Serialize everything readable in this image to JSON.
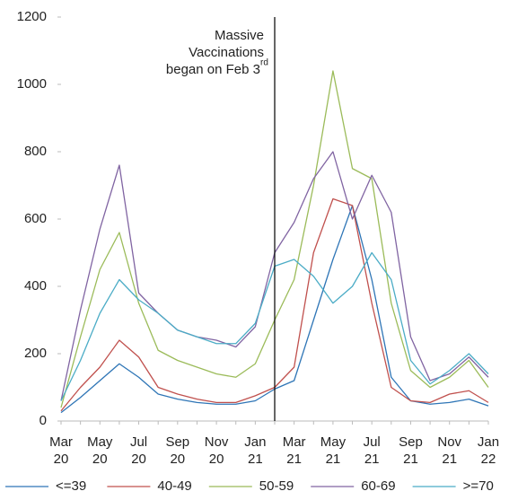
{
  "chart_data": {
    "type": "line",
    "categories": [
      "Mar 20",
      null,
      "May 20",
      null,
      "Jul 20",
      null,
      "Sep 20",
      null,
      "Nov 20",
      null,
      "Jan 21",
      null,
      "Mar 21",
      null,
      "May 21",
      null,
      "Jul 21",
      null,
      "Sep 21",
      null,
      "Nov 21",
      null,
      "Jan 22"
    ],
    "series": [
      {
        "name": "<=39",
        "color": "#2e75b6",
        "values": [
          25,
          70,
          120,
          170,
          130,
          80,
          65,
          55,
          50,
          50,
          60,
          95,
          120,
          300,
          480,
          640,
          420,
          130,
          60,
          50,
          55,
          65,
          45
        ]
      },
      {
        "name": "40-49",
        "color": "#c0504d",
        "values": [
          30,
          100,
          160,
          240,
          190,
          100,
          80,
          65,
          55,
          55,
          75,
          100,
          160,
          500,
          660,
          640,
          350,
          100,
          60,
          55,
          80,
          90,
          55
        ]
      },
      {
        "name": "50-59",
        "color": "#9bbb59",
        "values": [
          40,
          250,
          450,
          560,
          350,
          210,
          180,
          160,
          140,
          130,
          170,
          300,
          420,
          700,
          1040,
          750,
          720,
          350,
          150,
          100,
          130,
          180,
          100
        ]
      },
      {
        "name": "60-69",
        "color": "#8064a2",
        "values": [
          60,
          330,
          570,
          760,
          380,
          320,
          270,
          250,
          240,
          220,
          280,
          500,
          590,
          720,
          800,
          600,
          730,
          620,
          250,
          120,
          140,
          190,
          130
        ]
      },
      {
        "name": ">=70",
        "color": "#4bacc6",
        "values": [
          60,
          180,
          320,
          420,
          360,
          320,
          270,
          250,
          230,
          230,
          290,
          460,
          480,
          430,
          350,
          400,
          500,
          420,
          180,
          110,
          150,
          200,
          140
        ]
      }
    ],
    "ylim": [
      0,
      1200
    ],
    "yticks": [
      0,
      200,
      400,
      600,
      800,
      1000,
      1200
    ],
    "annotation": {
      "lines": [
        "Massive",
        "Vaccinations",
        "began on Feb 3"
      ],
      "superscript": "rd",
      "x": 11
    }
  }
}
